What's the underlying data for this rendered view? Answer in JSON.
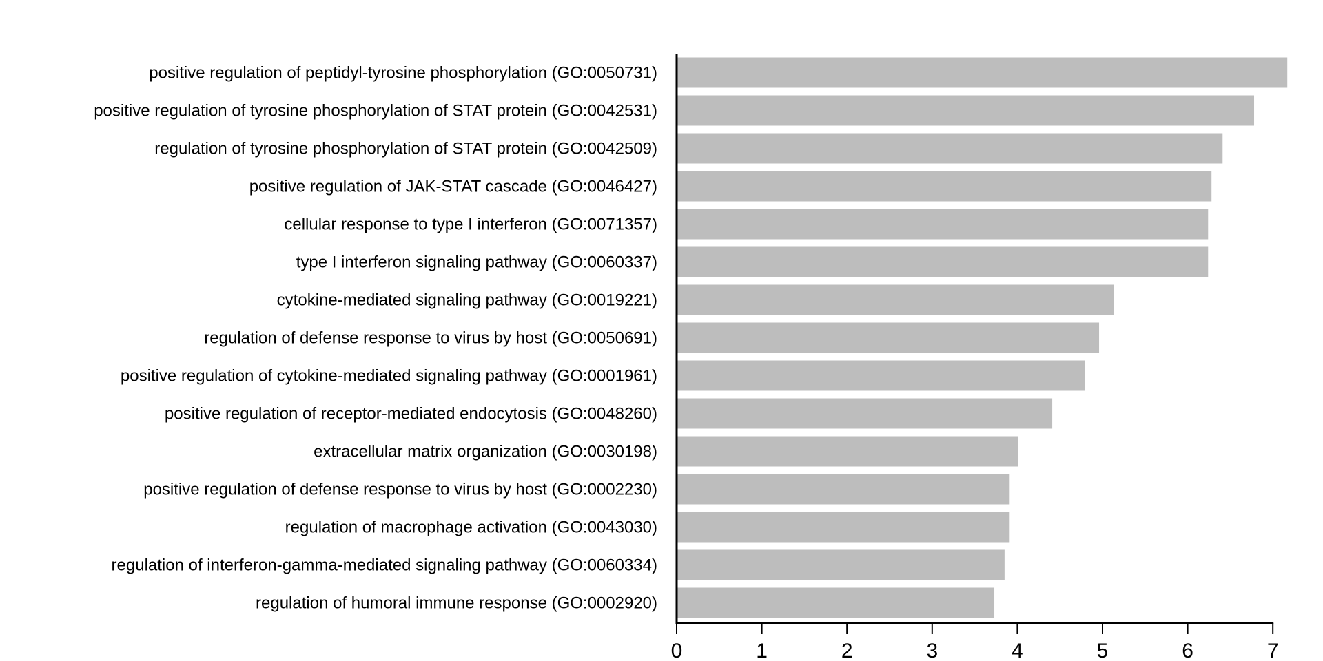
{
  "colors": {
    "bar": "#bdbdbd",
    "axis": "#000000",
    "text": "#000000",
    "background": "#ffffff"
  },
  "chart_data": {
    "type": "bar",
    "orientation": "horizontal",
    "title": "",
    "xlabel": "",
    "ylabel": "",
    "xlim": [
      0,
      7.2
    ],
    "xticks": [
      0,
      1,
      2,
      3,
      4,
      5,
      6,
      7
    ],
    "grid": false,
    "legend": "none",
    "categories": [
      "positive regulation of peptidyl-tyrosine phosphorylation (GO:0050731)",
      "positive regulation of tyrosine phosphorylation of STAT protein (GO:0042531)",
      "regulation of tyrosine phosphorylation of STAT protein (GO:0042509)",
      "positive regulation of JAK-STAT cascade (GO:0046427)",
      "cellular response to type I interferon (GO:0071357)",
      "type I interferon signaling pathway (GO:0060337)",
      "cytokine-mediated signaling pathway (GO:0019221)",
      "regulation of defense response to virus by host (GO:0050691)",
      "positive regulation of cytokine-mediated signaling pathway (GO:0001961)",
      "positive regulation of receptor-mediated endocytosis (GO:0048260)",
      "extracellular matrix organization (GO:0030198)",
      "positive regulation of defense response to virus by host (GO:0002230)",
      "regulation of macrophage activation (GO:0043030)",
      "regulation of interferon-gamma-mediated signaling pathway (GO:0060334)",
      "regulation of humoral immune response (GO:0002920)"
    ],
    "values": [
      7.17,
      6.78,
      6.41,
      6.28,
      6.24,
      6.24,
      5.13,
      4.96,
      4.79,
      4.41,
      4.01,
      3.91,
      3.91,
      3.85,
      3.73
    ]
  }
}
